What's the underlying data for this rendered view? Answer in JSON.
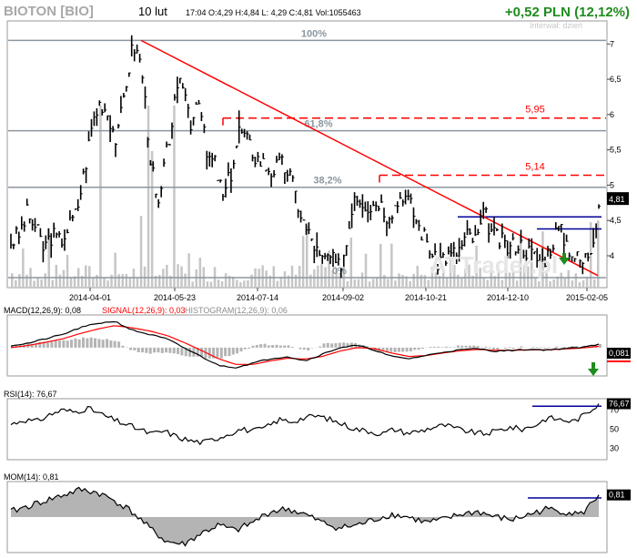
{
  "header": {
    "ticker": "BIOTON [BIO]",
    "date": "10 lut",
    "quote": "17:04  O:4,29  H:4,84  L: 4,29  C:4,81  Vol:1055463",
    "change": "+0,52 PLN (12,12%)",
    "interval": "Interwał: dzień"
  },
  "colors": {
    "price": "#000000",
    "volume": "#c6c6c6",
    "trendline": "#ff0000",
    "fib": "#8c96a0",
    "resistance": "#ff0000",
    "support": "#00009a",
    "signal": "#ff0000",
    "histogram": "#b4b4b4",
    "arrow": "#1e8c1e",
    "change": "#1e8c1e"
  },
  "watermark": "ATTrader.pl",
  "chart_data": [
    {
      "type": "line",
      "title": "BIOTON [BIO]",
      "x_dates": [
        "2014-04-01",
        "2014-05-23",
        "2014-07-14",
        "2014-09-02",
        "2014-10-21",
        "2014-12-10",
        "2015-02-05"
      ],
      "ylim": [
        3.6,
        7.3
      ],
      "yticks": [
        "7",
        "6,5",
        "6",
        "5,5",
        "5",
        "4,5",
        "4"
      ],
      "ytick_values": [
        7,
        6.5,
        6,
        5.5,
        5,
        4.5,
        4
      ],
      "close_path": [
        4.2,
        4.3,
        4.6,
        4.4,
        4.1,
        4.3,
        4.2,
        4.4,
        4.6,
        5.2,
        5.9,
        6.2,
        6.0,
        5.6,
        6.4,
        7.0,
        6.7,
        5.5,
        4.6,
        5.4,
        6.1,
        6.5,
        5.9,
        6.3,
        5.4,
        5.3,
        4.8,
        5.2,
        5.8,
        5.6,
        5.4,
        5.3,
        5.2,
        5.3,
        5.2,
        4.8,
        4.4,
        4.2,
        3.9,
        4.0,
        3.8,
        4.1,
        4.9,
        4.8,
        4.7,
        4.8,
        4.6,
        4.7,
        4.9,
        4.7,
        4.4,
        4.2,
        3.9,
        4.0,
        4.0,
        4.1,
        4.3,
        4.2,
        4.6,
        4.3,
        4.2,
        4.1,
        4.2,
        4.1,
        4.0,
        3.9,
        4.1,
        4.4,
        4.2,
        4.0,
        3.9,
        4.1,
        4.7
      ],
      "current_label": "4,81",
      "fib_levels": [
        {
          "label": "100%",
          "value": 7.05
        },
        {
          "label": "61,8%",
          "value": 5.77
        },
        {
          "label": "38,2%",
          "value": 4.97
        },
        {
          "label": "0%",
          "value": 3.69
        }
      ],
      "resistance": [
        {
          "label": "5,95",
          "value": 5.95
        },
        {
          "label": "5,14",
          "value": 5.14
        }
      ],
      "support": [
        4.55,
        4.38
      ],
      "trendline": [
        7.05,
        3.72
      ]
    },
    {
      "type": "line",
      "name": "MACD",
      "legend": [
        "MACD(12,26,9): 0,08",
        "SIGNAL(12,26,9): 0,03",
        "HISTOGRAM(12,26,9): 0,06"
      ],
      "macd_path": [
        0.05,
        0.1,
        0.2,
        0.3,
        0.45,
        0.55,
        0.6,
        0.4,
        0.3,
        0.2,
        0.0,
        -0.2,
        -0.4,
        -0.45,
        -0.35,
        -0.25,
        -0.2,
        -0.3,
        -0.15,
        0.0,
        0.05,
        -0.05,
        -0.2,
        -0.25,
        -0.18,
        -0.1,
        -0.05,
        -0.02,
        -0.08,
        -0.06,
        -0.04,
        -0.05,
        -0.02,
        0.0,
        0.08
      ],
      "signal_path": [
        0.0,
        0.05,
        0.12,
        0.2,
        0.32,
        0.42,
        0.5,
        0.45,
        0.38,
        0.28,
        0.12,
        -0.06,
        -0.25,
        -0.38,
        -0.38,
        -0.3,
        -0.24,
        -0.26,
        -0.2,
        -0.08,
        0.0,
        -0.02,
        -0.12,
        -0.2,
        -0.18,
        -0.12,
        -0.07,
        -0.04,
        -0.06,
        -0.06,
        -0.05,
        -0.05,
        -0.03,
        -0.01,
        0.03
      ],
      "ylim": [
        -0.6,
        0.7
      ],
      "current_label": "0,081"
    },
    {
      "type": "line",
      "name": "RSI",
      "legend": "RSI(14): 76,67",
      "values": [
        55,
        60,
        58,
        65,
        70,
        68,
        72,
        66,
        60,
        55,
        50,
        45,
        48,
        42,
        38,
        36,
        40,
        45,
        50,
        48,
        52,
        60,
        58,
        62,
        64,
        60,
        55,
        50,
        48,
        45,
        50,
        46,
        48,
        52,
        54,
        50,
        47,
        45,
        48,
        52,
        50,
        54,
        62,
        60,
        58,
        66,
        76.67
      ],
      "ylim": [
        20,
        80
      ],
      "yticks": [
        "70",
        "50",
        "30"
      ],
      "ytick_values": [
        70,
        50,
        30
      ],
      "current_label": "76,67"
    },
    {
      "type": "area",
      "name": "MOM",
      "legend": "MOM(14): 0,81",
      "values": [
        0.2,
        0.4,
        0.6,
        0.8,
        1.0,
        0.9,
        0.6,
        0.2,
        -0.4,
        -0.9,
        -1.0,
        -0.6,
        -0.3,
        -0.5,
        -0.2,
        0.2,
        0.3,
        0.1,
        -0.2,
        -0.4,
        -0.3,
        -0.1,
        0.1,
        0.0,
        -0.2,
        -0.1,
        0.1,
        0.2,
        0.0,
        -0.1,
        0.1,
        0.3,
        0.2,
        0.1,
        0.81
      ],
      "ylim": [
        -1.2,
        1.2
      ],
      "current_label": "0,81"
    }
  ]
}
